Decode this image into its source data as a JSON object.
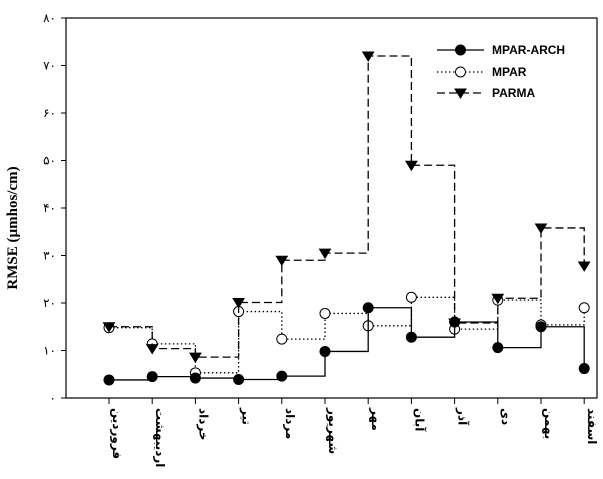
{
  "chart_data": {
    "type": "line",
    "step": true,
    "ylabel": "RMSE (µmhos/cm)",
    "ylim": [
      0,
      80
    ],
    "yticks": [
      0,
      10,
      20,
      30,
      40,
      50,
      60,
      70,
      80
    ],
    "ytick_labels": [
      "٠",
      "١٠",
      "٢٠",
      "٣٠",
      "۴٠",
      "۵٠",
      "۶٠",
      "٧٠",
      "٨٠"
    ],
    "categories": [
      "فروردین",
      "اردیبهشت",
      "خرداد",
      "تیر",
      "مرداد",
      "شهریور",
      "مهر",
      "آبان",
      "آذر",
      "دی",
      "بهمن",
      "اسفند"
    ],
    "legend_position": "top-right",
    "series": [
      {
        "name": "MPAR-ARCH",
        "marker": "filled-circle",
        "line": "solid",
        "values": [
          3.8,
          4.5,
          4.2,
          3.9,
          4.6,
          9.8,
          19.0,
          12.8,
          16.0,
          10.6,
          15.0,
          6.2
        ]
      },
      {
        "name": "MPAR",
        "marker": "open-circle",
        "line": "dotted",
        "values": [
          14.8,
          11.4,
          5.3,
          18.2,
          12.4,
          17.8,
          15.2,
          21.2,
          14.5,
          20.6,
          15.4,
          19.0
        ]
      },
      {
        "name": "PARMA",
        "marker": "filled-triangle-down",
        "line": "dashed",
        "values": [
          15.0,
          10.4,
          8.6,
          20.1,
          29.0,
          30.5,
          72.0,
          49.0,
          15.8,
          21.0,
          35.8,
          27.8
        ]
      }
    ]
  }
}
